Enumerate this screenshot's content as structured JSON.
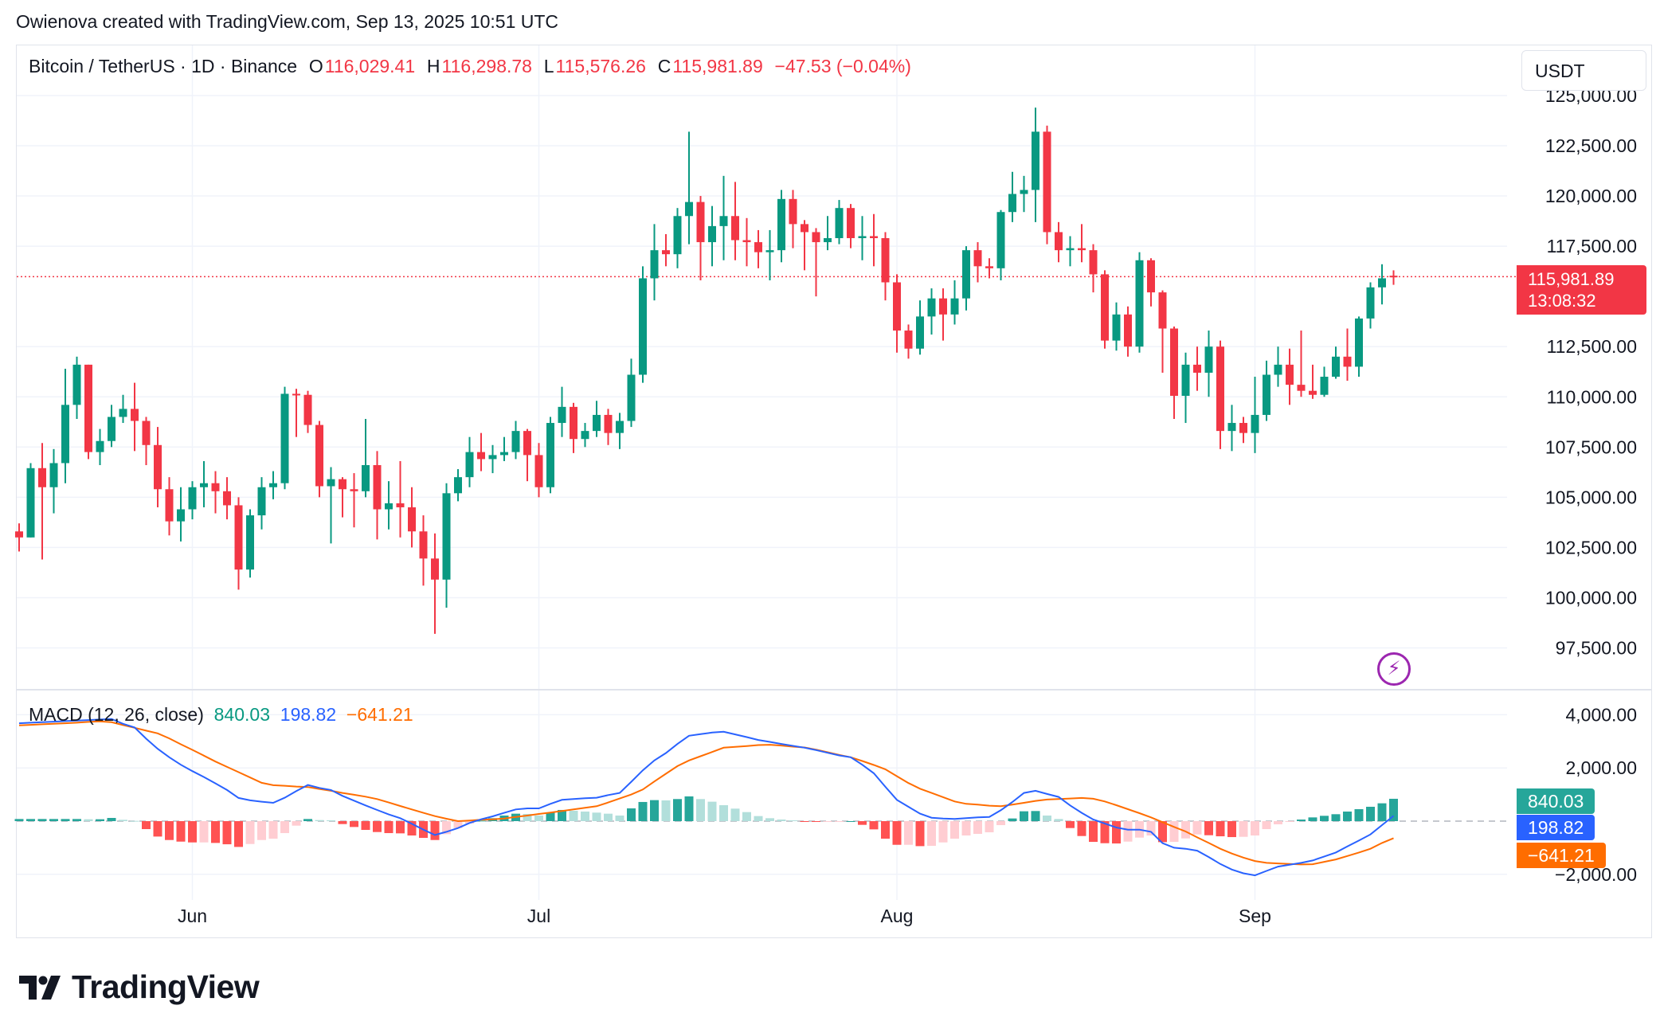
{
  "credit": "Owienova created with TradingView.com, Sep 13, 2025 10:51 UTC",
  "legend": {
    "symbol": "Bitcoin / TetherUS · 1D · Binance",
    "o_label": "O",
    "o": "116,029.41",
    "h_label": "H",
    "h": "116,298.78",
    "l_label": "L",
    "l": "115,576.26",
    "c_label": "C",
    "c": "115,981.89",
    "change": "−47.53 (−0.04%)"
  },
  "currency": "USDT",
  "last_price": {
    "price": "115,981.89",
    "countdown": "13:08:32"
  },
  "macd_legend": {
    "title": "MACD (12, 26, close)",
    "hist": "840.03",
    "macd": "198.82",
    "signal": "−641.21"
  },
  "badges": {
    "hist": "840.03",
    "macd": "198.82",
    "signal": "−641.21"
  },
  "brand": "TradingView",
  "colors": {
    "up": "#089981",
    "down": "#F23645",
    "macd": "#2962FF",
    "signal": "#FF6D00",
    "hist_up": "#26A69A",
    "hist_up_light": "#B2DFDB",
    "hist_down": "#FF5252",
    "hist_down_light": "#FFCDD2",
    "alert": "#9C27B0"
  },
  "icons": {
    "alert": "lightning-icon",
    "logo": "tradingview-logo"
  },
  "chart_data": [
    {
      "type": "candlestick",
      "title": "Bitcoin / TetherUS · 1D · Binance",
      "start_date": "2025-05-17",
      "end_date": "2025-09-13",
      "x_ticks": [
        "Jun",
        "Jul",
        "Aug",
        "Sep"
      ],
      "x_tick_dates": [
        "2025-06-01",
        "2025-07-01",
        "2025-08-01",
        "2025-09-01"
      ],
      "y_ticks": [
        "97,500.00",
        "100,000.00",
        "102,500.00",
        "105,000.00",
        "107,500.00",
        "110,000.00",
        "112,500.00",
        "117,500.00",
        "120,000.00",
        "122,500.00",
        "125,000.00"
      ],
      "y_tick_values": [
        97500,
        100000,
        102500,
        105000,
        107500,
        110000,
        112500,
        117500,
        120000,
        122500,
        125000
      ],
      "ylim": [
        95500,
        125500
      ],
      "last_price_line": 115981.89,
      "grid": true,
      "ohlc": [
        [
          103300,
          103700,
          102300,
          103000
        ],
        [
          103000,
          106700,
          103000,
          106450
        ],
        [
          106450,
          107700,
          101900,
          105500
        ],
        [
          105500,
          107400,
          104200,
          106700
        ],
        [
          106700,
          111400,
          105700,
          109600
        ],
        [
          109600,
          112000,
          108900,
          111600
        ],
        [
          111600,
          111600,
          106900,
          107250
        ],
        [
          107250,
          108400,
          106600,
          107800
        ],
        [
          107800,
          109600,
          107500,
          109000
        ],
        [
          109000,
          110100,
          108700,
          109400
        ],
        [
          109400,
          110700,
          107300,
          108800
        ],
        [
          108800,
          109000,
          106600,
          107600
        ],
        [
          107600,
          108500,
          104500,
          105400
        ],
        [
          105400,
          106000,
          103100,
          103800
        ],
        [
          103800,
          105500,
          102800,
          104400
        ],
        [
          104400,
          105800,
          103900,
          105500
        ],
        [
          105500,
          106800,
          104500,
          105700
        ],
        [
          105700,
          106300,
          104200,
          105300
        ],
        [
          105300,
          106000,
          103900,
          104600
        ],
        [
          104600,
          105000,
          100400,
          101400
        ],
        [
          101400,
          104400,
          101000,
          104100
        ],
        [
          104100,
          106000,
          103400,
          105500
        ],
        [
          105500,
          106300,
          104900,
          105700
        ],
        [
          105700,
          110500,
          105400,
          110150
        ],
        [
          110150,
          110400,
          108000,
          110100
        ],
        [
          110100,
          110300,
          108200,
          108600
        ],
        [
          108600,
          108800,
          105000,
          105550
        ],
        [
          105550,
          106500,
          102700,
          105900
        ],
        [
          105900,
          106000,
          104000,
          105400
        ],
        [
          105400,
          106200,
          103500,
          105300
        ],
        [
          105300,
          108900,
          105000,
          106600
        ],
        [
          106600,
          107300,
          102900,
          104400
        ],
        [
          104400,
          105800,
          103400,
          104700
        ],
        [
          104700,
          106800,
          103000,
          104500
        ],
        [
          104500,
          105500,
          102500,
          103300
        ],
        [
          103300,
          104100,
          100600,
          101950
        ],
        [
          101950,
          103200,
          98200,
          100900
        ],
        [
          100900,
          105700,
          99500,
          105200
        ],
        [
          105200,
          106400,
          104800,
          106000
        ],
        [
          106000,
          108000,
          105500,
          107250
        ],
        [
          107250,
          108200,
          106300,
          106900
        ],
        [
          106900,
          107600,
          106200,
          107100
        ],
        [
          107100,
          108000,
          106800,
          107250
        ],
        [
          107250,
          108800,
          106900,
          108300
        ],
        [
          108300,
          108400,
          105800,
          107100
        ],
        [
          107100,
          107700,
          105000,
          105500
        ],
        [
          105500,
          109000,
          105200,
          108700
        ],
        [
          108700,
          110500,
          108000,
          109500
        ],
        [
          109500,
          109700,
          107200,
          107900
        ],
        [
          107900,
          108700,
          107500,
          108300
        ],
        [
          108300,
          109800,
          108000,
          109100
        ],
        [
          109100,
          109400,
          107600,
          108200
        ],
        [
          108200,
          109200,
          107400,
          108800
        ],
        [
          108800,
          111900,
          108500,
          111100
        ],
        [
          111100,
          116500,
          110700,
          115900
        ],
        [
          115900,
          118600,
          114800,
          117300
        ],
        [
          117300,
          118100,
          116500,
          117100
        ],
        [
          117100,
          119400,
          116400,
          119000
        ],
        [
          119000,
          123200,
          117600,
          119700
        ],
        [
          119700,
          120000,
          115800,
          117700
        ],
        [
          117700,
          119500,
          116500,
          118500
        ],
        [
          118500,
          121000,
          116800,
          119000
        ],
        [
          119000,
          120700,
          116800,
          117800
        ],
        [
          117800,
          118900,
          116500,
          117700
        ],
        [
          117700,
          118300,
          116400,
          117200
        ],
        [
          117200,
          118300,
          115800,
          117300
        ],
        [
          117300,
          120300,
          116700,
          119850
        ],
        [
          119850,
          120300,
          117400,
          118600
        ],
        [
          118600,
          118800,
          116300,
          118200
        ],
        [
          118200,
          118400,
          115000,
          117700
        ],
        [
          117700,
          119000,
          117300,
          117900
        ],
        [
          117900,
          119800,
          117600,
          119400
        ],
        [
          119400,
          119600,
          117400,
          117900
        ],
        [
          117900,
          119000,
          116800,
          118000
        ],
        [
          118000,
          119100,
          116500,
          117900
        ],
        [
          117900,
          118200,
          114800,
          115700
        ],
        [
          115700,
          116100,
          112200,
          113300
        ],
        [
          113300,
          113600,
          111900,
          112400
        ],
        [
          112400,
          114800,
          112100,
          114000
        ],
        [
          114000,
          115400,
          113100,
          114900
        ],
        [
          114900,
          115400,
          112800,
          114100
        ],
        [
          114100,
          115800,
          113600,
          114900
        ],
        [
          114900,
          117500,
          114300,
          117300
        ],
        [
          117300,
          117700,
          115700,
          116500
        ],
        [
          116500,
          116900,
          115900,
          116400
        ],
        [
          116400,
          119300,
          115800,
          119200
        ],
        [
          119200,
          121200,
          118700,
          120100
        ],
        [
          120100,
          121000,
          119200,
          120300
        ],
        [
          120300,
          124400,
          118700,
          123200
        ],
        [
          123200,
          123500,
          117600,
          118200
        ],
        [
          118200,
          118700,
          116700,
          117300
        ],
        [
          117300,
          118000,
          116500,
          117400
        ],
        [
          117400,
          118600,
          116700,
          117300
        ],
        [
          117300,
          117600,
          115200,
          116100
        ],
        [
          116100,
          116300,
          112400,
          112800
        ],
        [
          112800,
          114700,
          112300,
          114100
        ],
        [
          114100,
          114500,
          112000,
          112500
        ],
        [
          112500,
          117200,
          112200,
          116800
        ],
        [
          116800,
          116900,
          114500,
          115200
        ],
        [
          115200,
          115300,
          111200,
          113400
        ],
        [
          113400,
          113500,
          108900,
          110050
        ],
        [
          110050,
          112200,
          108700,
          111600
        ],
        [
          111600,
          112500,
          110300,
          111200
        ],
        [
          111200,
          113300,
          110000,
          112500
        ],
        [
          112500,
          112800,
          107400,
          108300
        ],
        [
          108300,
          109600,
          107300,
          108700
        ],
        [
          108700,
          109000,
          107700,
          108200
        ],
        [
          108200,
          111000,
          107200,
          109100
        ],
        [
          109100,
          111800,
          108800,
          111100
        ],
        [
          111100,
          112500,
          110500,
          111600
        ],
        [
          111600,
          112400,
          109600,
          110600
        ],
        [
          110600,
          113300,
          110000,
          110300
        ],
        [
          110300,
          111600,
          109900,
          110100
        ],
        [
          110100,
          111500,
          110000,
          111000
        ],
        [
          111000,
          112500,
          110900,
          112000
        ],
        [
          112000,
          113400,
          110800,
          111500
        ],
        [
          111500,
          114000,
          111000,
          113900
        ],
        [
          113900,
          115700,
          113400,
          115450
        ],
        [
          115450,
          116600,
          114600,
          115900
        ],
        [
          116029.41,
          116298.78,
          115576.26,
          115981.89
        ]
      ]
    },
    {
      "type": "line+bar",
      "title": "MACD (12, 26, close)",
      "y_ticks": [
        "4,000.00",
        "2,000.00",
        "−2,000.00"
      ],
      "y_tick_values": [
        4000,
        2000,
        -2000
      ],
      "ylim": [
        -2500,
        4300
      ],
      "macd": [
        3680,
        3700,
        3720,
        3740,
        3760,
        3780,
        3800,
        3820,
        3840,
        3660,
        3520,
        3100,
        2720,
        2400,
        2120,
        1880,
        1660,
        1420,
        1170,
        870,
        780,
        730,
        690,
        880,
        1130,
        1360,
        1250,
        1170,
        950,
        770,
        590,
        420,
        250,
        110,
        -100,
        -320,
        -520,
        -400,
        -260,
        -70,
        70,
        180,
        310,
        440,
        480,
        480,
        650,
        800,
        830,
        860,
        880,
        980,
        1060,
        1480,
        1910,
        2280,
        2560,
        2900,
        3210,
        3270,
        3330,
        3360,
        3260,
        3160,
        3050,
        2980,
        2900,
        2830,
        2760,
        2670,
        2570,
        2470,
        2400,
        2120,
        1800,
        1290,
        800,
        540,
        280,
        130,
        100,
        80,
        110,
        140,
        160,
        410,
        720,
        1060,
        1140,
        1020,
        910,
        590,
        310,
        60,
        -90,
        -240,
        -320,
        -320,
        -400,
        -830,
        -1000,
        -1040,
        -1110,
        -1350,
        -1610,
        -1820,
        -1960,
        -2040,
        -1870,
        -1710,
        -1640,
        -1570,
        -1480,
        -1330,
        -1180,
        -950,
        -730,
        -500,
        -150,
        198.82
      ],
      "signal": [
        3600,
        3620,
        3640,
        3660,
        3680,
        3700,
        3730,
        3750,
        3720,
        3610,
        3510,
        3400,
        3300,
        3110,
        2890,
        2680,
        2460,
        2240,
        2040,
        1840,
        1640,
        1440,
        1350,
        1330,
        1300,
        1280,
        1210,
        1140,
        1060,
        990,
        920,
        830,
        700,
        570,
        440,
        310,
        190,
        90,
        0,
        20,
        50,
        70,
        100,
        160,
        210,
        270,
        320,
        380,
        440,
        500,
        560,
        700,
        850,
        1000,
        1190,
        1490,
        1780,
        2070,
        2280,
        2440,
        2600,
        2760,
        2790,
        2820,
        2860,
        2870,
        2840,
        2800,
        2770,
        2690,
        2590,
        2490,
        2400,
        2260,
        2110,
        1950,
        1690,
        1430,
        1220,
        1060,
        900,
        740,
        650,
        620,
        580,
        560,
        620,
        690,
        760,
        810,
        830,
        850,
        870,
        840,
        740,
        600,
        450,
        300,
        140,
        -40,
        -220,
        -390,
        -610,
        -820,
        -1040,
        -1220,
        -1370,
        -1500,
        -1570,
        -1590,
        -1610,
        -1630,
        -1620,
        -1530,
        -1440,
        -1310,
        -1180,
        -1040,
        -820,
        -641.21
      ]
    }
  ]
}
